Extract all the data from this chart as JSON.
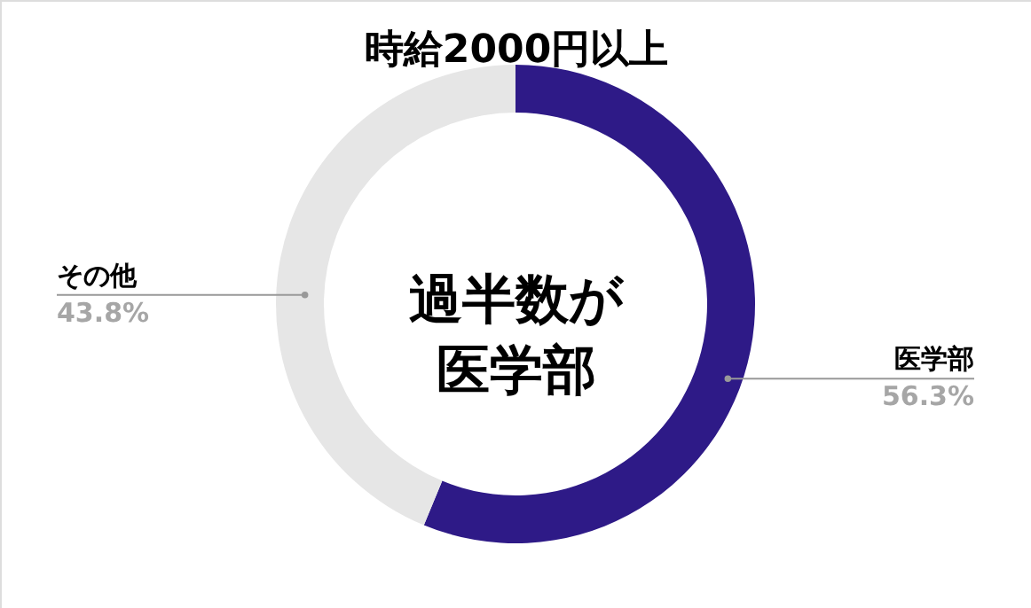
{
  "chart_data": {
    "type": "donut",
    "title": "時給2000円以上",
    "categories": [
      "医学部",
      "その他"
    ],
    "values": [
      56.3,
      43.8
    ],
    "colors": [
      "#2e1a87",
      "#e6e6e6"
    ],
    "value_labels": [
      "56.3%",
      "43.8%"
    ],
    "annotations": [
      "過半数が",
      "医学部"
    ]
  }
}
